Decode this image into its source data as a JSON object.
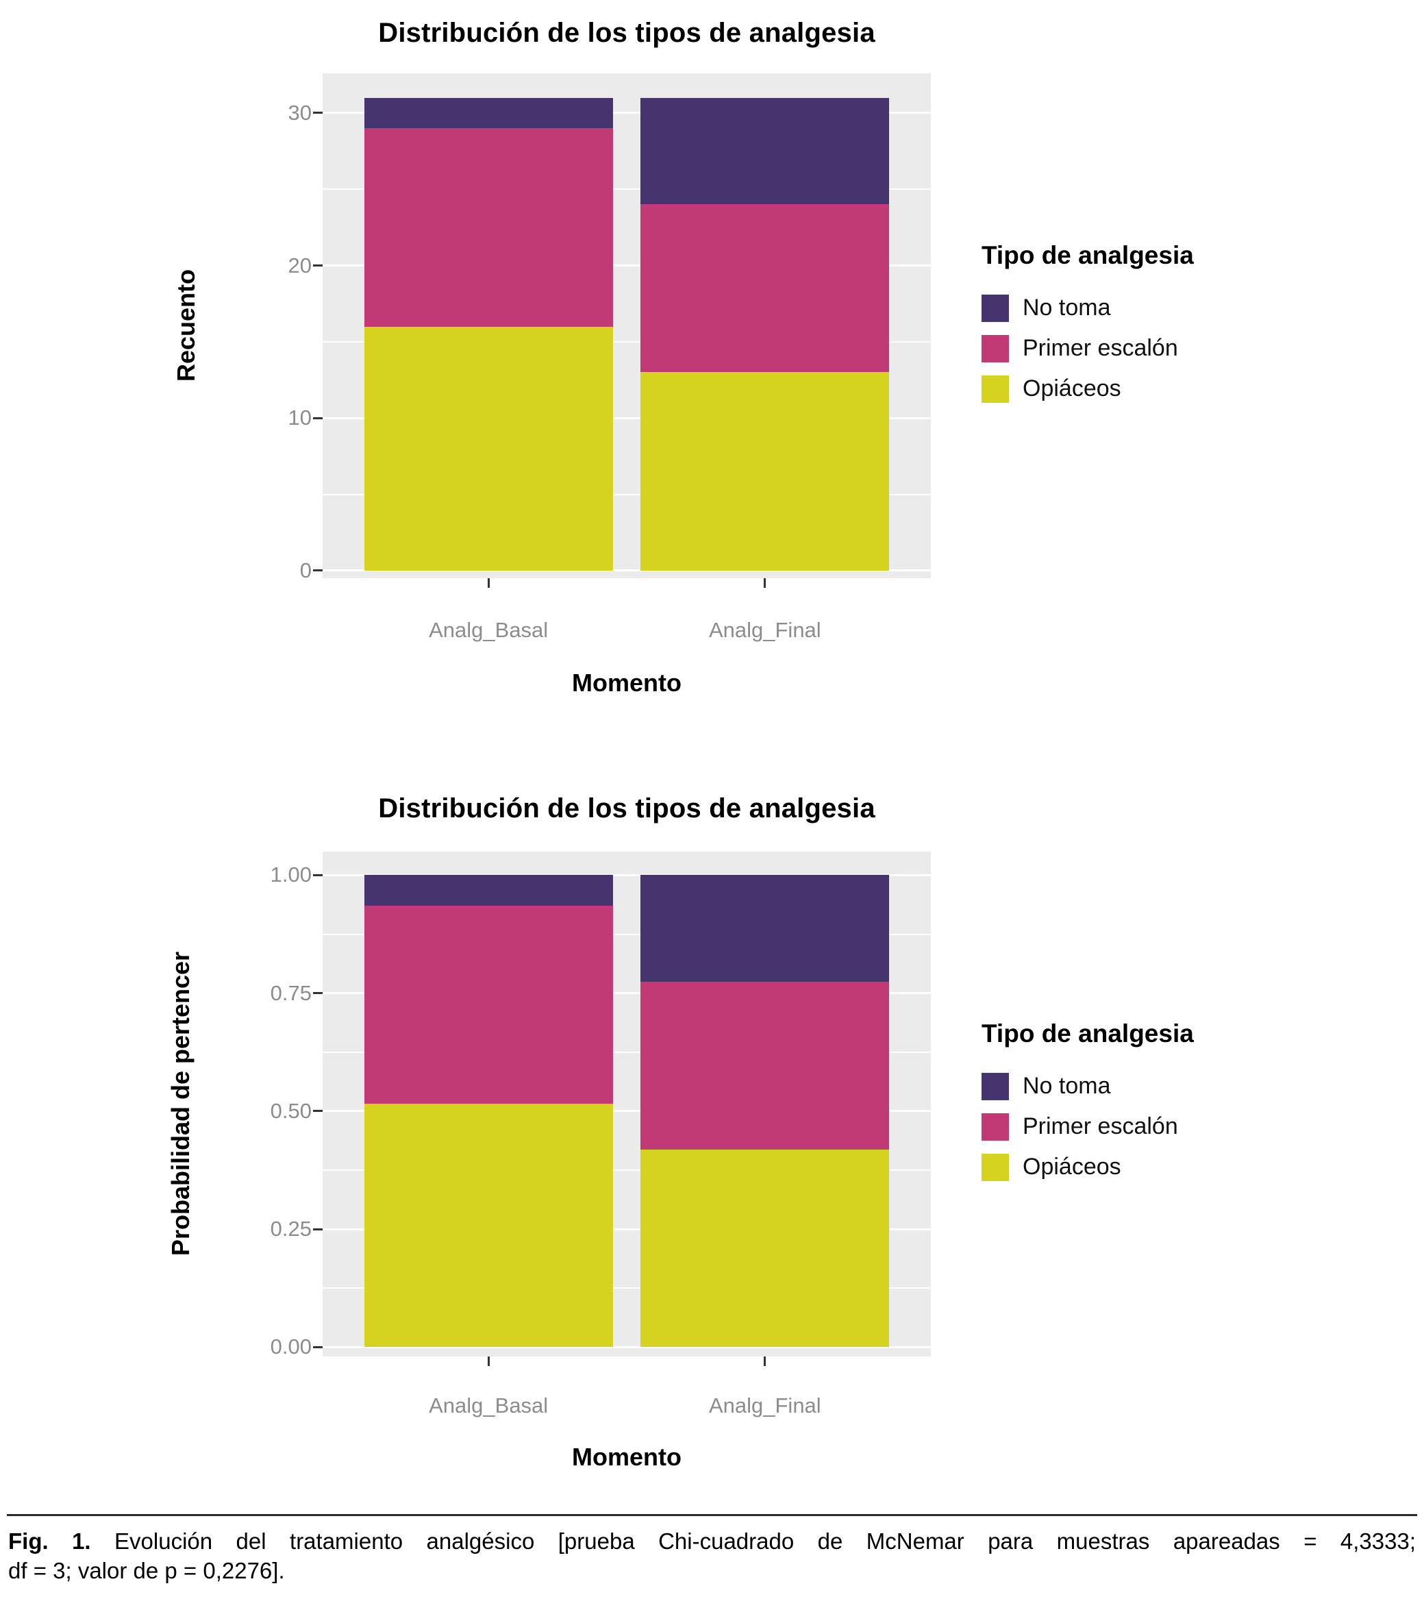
{
  "legend": {
    "title": "Tipo de analgesia",
    "items": [
      {
        "label": "No toma",
        "color": "#45346d"
      },
      {
        "label": "Primer escalón",
        "color": "#c23a75"
      },
      {
        "label": "Opiáceos",
        "color": "#d6d320"
      }
    ]
  },
  "chart_data": [
    {
      "type": "bar",
      "stacked": true,
      "title": "Distribución de los tipos de analgesia",
      "xlabel": "Momento",
      "ylabel": "Recuento",
      "categories": [
        "Analg_Basal",
        "Analg_Final"
      ],
      "series": [
        {
          "name": "No toma",
          "values": [
            2,
            7
          ]
        },
        {
          "name": "Primer escalón",
          "values": [
            13,
            11
          ]
        },
        {
          "name": "Opiáceos",
          "values": [
            16,
            13
          ]
        }
      ],
      "ylim": [
        0,
        31
      ],
      "yticks": [
        0,
        10,
        20,
        30
      ],
      "ytick_labels": [
        "0",
        "10",
        "20",
        "30"
      ],
      "yticks_minor": [
        5,
        15,
        25
      ],
      "grid": true,
      "legend_position": "right",
      "panel_background": "#EBEBEB"
    },
    {
      "type": "bar",
      "stacked": true,
      "title": "Distribución de los tipos de analgesia",
      "xlabel": "Momento",
      "ylabel": "Probabilidad de pertencer",
      "categories": [
        "Analg_Basal",
        "Analg_Final"
      ],
      "series": [
        {
          "name": "No toma",
          "values": [
            0.065,
            0.226
          ]
        },
        {
          "name": "Primer escalón",
          "values": [
            0.419,
            0.355
          ]
        },
        {
          "name": "Opiáceos",
          "values": [
            0.516,
            0.419
          ]
        }
      ],
      "ylim": [
        0,
        1
      ],
      "yticks": [
        0,
        0.25,
        0.5,
        0.75,
        1
      ],
      "ytick_labels": [
        "0.00",
        "0.25",
        "0.50",
        "0.75",
        "1.00"
      ],
      "yticks_minor": [
        0.125,
        0.375,
        0.625,
        0.875
      ],
      "grid": true,
      "legend_position": "right",
      "panel_background": "#EBEBEB"
    }
  ],
  "caption": {
    "fig_label": "Fig. 1.",
    "line1": "Evolución del tratamiento analgésico [prueba Chi-cuadrado de McNemar para muestras apareadas = 4,3333;",
    "line2": "df = 3; valor de p = 0,2276]."
  }
}
